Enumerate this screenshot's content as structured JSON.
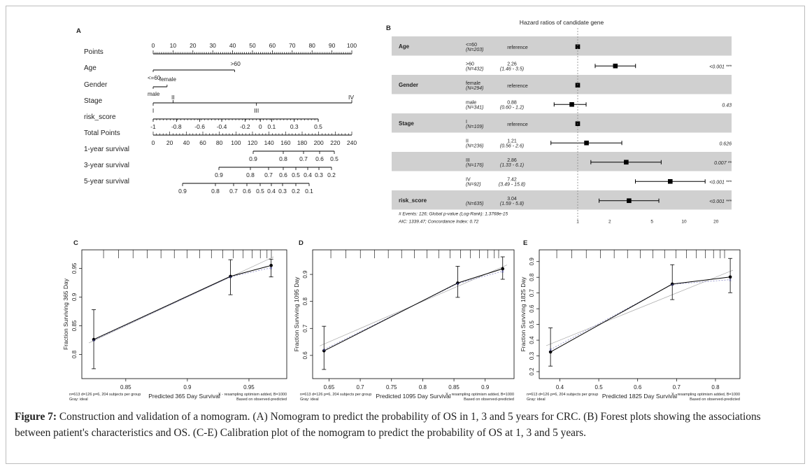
{
  "chart_data": [
    {
      "panel": "A",
      "type": "table",
      "kind": "nomogram",
      "rows": [
        {
          "label": "Points",
          "ticks": [
            0,
            10,
            20,
            30,
            40,
            50,
            60,
            70,
            80,
            90,
            100
          ]
        },
        {
          "label": "Age",
          "levels": [
            {
              "name": "<=60",
              "points": 0
            },
            {
              "name": ">60",
              "points": 41
            }
          ]
        },
        {
          "label": "Gender",
          "levels": [
            {
              "name": "female",
              "points": 7
            },
            {
              "name": "male",
              "points": 0
            }
          ]
        },
        {
          "label": "Stage",
          "levels": [
            {
              "name": "I",
              "points": 0
            },
            {
              "name": "II",
              "points": 10
            },
            {
              "name": "III",
              "points": 52
            },
            {
              "name": "IV",
              "points": 100
            }
          ]
        },
        {
          "label": "risk_score",
          "ticks": [
            -1,
            -0.8,
            -0.6,
            -0.4,
            -0.2,
            0,
            0.1,
            0.3,
            0.5
          ]
        },
        {
          "label": "Total Points",
          "ticks": [
            0,
            20,
            40,
            60,
            80,
            100,
            120,
            140,
            160,
            180,
            200,
            220,
            240
          ]
        },
        {
          "label": "1-year survival",
          "ticks": [
            "0.9",
            "0.8",
            "0.7",
            "0.6",
            "0.5"
          ]
        },
        {
          "label": "3-year survival",
          "ticks": [
            "0.9",
            "0.8",
            "0.7",
            "0.6",
            "0.5",
            "0.4",
            "0.3",
            "0.2"
          ]
        },
        {
          "label": "5-year survival",
          "ticks": [
            "0.9",
            "0.8",
            "0.7",
            "0.6",
            "0.5",
            "0.4",
            "0.3",
            "0.2",
            "0.1"
          ]
        }
      ]
    },
    {
      "panel": "B",
      "type": "scatter",
      "kind": "forest",
      "title": "Hazard ratios of candidate gene",
      "x_ticks": [
        "1",
        "2",
        "5",
        "10",
        "20"
      ],
      "rows": [
        {
          "variable": "Age",
          "level": "<=60",
          "n": "(N=203)",
          "hr_text": "reference",
          "hr": 1,
          "p": "",
          "shaded": true
        },
        {
          "variable": "",
          "level": ">60",
          "n": "(N=432)",
          "hr_text": "2.26",
          "ci_text": "(1.46 - 3.5)",
          "hr": 2.26,
          "lo": 1.46,
          "hi": 3.5,
          "p": "<0.001 ***",
          "shaded": false
        },
        {
          "variable": "Gender",
          "level": "female",
          "n": "(N=294)",
          "hr_text": "reference",
          "hr": 1,
          "p": "",
          "shaded": true
        },
        {
          "variable": "",
          "level": "male",
          "n": "(N=341)",
          "hr_text": "0.88",
          "ci_text": "(0.60 - 1.2)",
          "hr": 0.88,
          "lo": 0.6,
          "hi": 1.2,
          "p": "0.43",
          "shaded": false
        },
        {
          "variable": "Stage",
          "level": "I",
          "n": "(N=109)",
          "hr_text": "reference",
          "hr": 1,
          "p": "",
          "shaded": true
        },
        {
          "variable": "",
          "level": "II",
          "n": "(N=236)",
          "hr_text": "1.21",
          "ci_text": "(0.56 - 2.6)",
          "hr": 1.21,
          "lo": 0.56,
          "hi": 2.6,
          "p": "0.626",
          "shaded": false
        },
        {
          "variable": "",
          "level": "III",
          "n": "(N=176)",
          "hr_text": "2.86",
          "ci_text": "(1.33 - 6.1)",
          "hr": 2.86,
          "lo": 1.33,
          "hi": 6.1,
          "p": "0.007 **",
          "shaded": true
        },
        {
          "variable": "",
          "level": "IV",
          "n": "(N=92)",
          "hr_text": "7.42",
          "ci_text": "(3.49 - 15.8)",
          "hr": 7.42,
          "lo": 3.49,
          "hi": 15.8,
          "p": "<0.001 ***",
          "shaded": false
        },
        {
          "variable": "risk_score",
          "level": "",
          "n": "(N=635)",
          "hr_text": "3.04",
          "ci_text": "(1.59 - 5.8)",
          "hr": 3.04,
          "lo": 1.59,
          "hi": 5.8,
          "p": "<0.001 ***",
          "shaded": true
        }
      ],
      "footnote1": "# Events: 126; Global p-value (Log-Rank): 1.3768e-15",
      "footnote2": "AIC: 1339.47; Concordance Index: 0.72"
    },
    {
      "panel": "C",
      "type": "line",
      "kind": "calibration",
      "xlabel": "Predicted  365 Day Survival",
      "ylabel": "Fraction Surviving 365 Day",
      "xlim": [
        0.82,
        0.975
      ],
      "ylim": [
        0.77,
        0.97
      ],
      "x_ticks": [
        0.85,
        0.9,
        0.95
      ],
      "y_ticks": [
        0.8,
        0.85,
        0.9,
        0.95
      ],
      "x": [
        0.824,
        0.935,
        0.968
      ],
      "y": [
        0.826,
        0.936,
        0.955
      ],
      "ci_low": [
        0.775,
        0.904,
        0.935
      ],
      "ci_high": [
        0.878,
        0.965,
        0.966
      ],
      "corrected": [
        0.825,
        0.935,
        0.951
      ],
      "note_left1": "n=613 d=126 p=6, 204 subjects per group",
      "note_left2": "Gray: ideal",
      "note_right1": "X - resampling optimism added, B=1000",
      "note_right2": "Based on observed-predicted"
    },
    {
      "panel": "D",
      "type": "line",
      "kind": "calibration",
      "xlabel": "Predicted  1095 Day Survival",
      "ylabel": "Fraction Surviving 1095 Day",
      "xlim": [
        0.635,
        0.935
      ],
      "ylim": [
        0.54,
        0.965
      ],
      "x_ticks": [
        0.65,
        0.7,
        0.75,
        0.8,
        0.85,
        0.9
      ],
      "y_ticks": [
        0.6,
        0.7,
        0.8,
        0.9
      ],
      "x": [
        0.642,
        0.856,
        0.928
      ],
      "y": [
        0.617,
        0.868,
        0.921
      ],
      "ci_low": [
        0.548,
        0.815,
        0.882
      ],
      "ci_high": [
        0.708,
        0.93,
        0.965
      ],
      "corrected": [
        0.622,
        0.866,
        0.912
      ],
      "note_left1": "n=613 d=126 p=6, 204 subjects per group",
      "note_left2": "Gray: ideal",
      "note_right1": "X - resampling optimism added, B=1000",
      "note_right2": "Based on observed-predicted"
    },
    {
      "panel": "E",
      "type": "line",
      "kind": "calibration",
      "xlabel": "Predicted  1825 Day Survival",
      "ylabel": "Fraction Surviving 1825 Day",
      "xlim": [
        0.365,
        0.845
      ],
      "ylim": [
        0.2,
        0.93
      ],
      "x_ticks": [
        0.4,
        0.5,
        0.6,
        0.7,
        0.8
      ],
      "y_ticks": [
        0.2,
        0.3,
        0.4,
        0.5,
        0.6,
        0.7,
        0.8,
        0.9
      ],
      "x": [
        0.376,
        0.689,
        0.838
      ],
      "y": [
        0.325,
        0.757,
        0.802
      ],
      "ci_low": [
        0.235,
        0.658,
        0.702
      ],
      "ci_high": [
        0.478,
        0.88,
        0.92
      ],
      "corrected": [
        0.34,
        0.755,
        0.785
      ],
      "note_left1": "n=613 d=126 p=6, 204 subjects per group",
      "note_left2": "Gray: ideal",
      "note_right1": "X - resampling optimism added, B=1000",
      "note_right2": "Based on observed-predicted"
    }
  ],
  "caption": {
    "label": "Figure 7:",
    "text": " Construction and validation of a nomogram. (A) Nomogram to predict the probability of OS in 1, 3 and 5 years for CRC. (B) Forest plots showing the associations between patient's characteristics and OS. (C-E) Calibration plot of the nomogram to predict the probability of OS at 1, 3 and 5 years."
  }
}
